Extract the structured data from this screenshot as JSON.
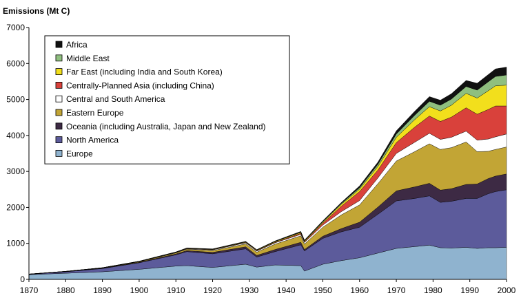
{
  "chart_data": {
    "type": "area",
    "stacked": true,
    "ylabel": "Emissions (Mt C)",
    "xlabel": "",
    "xlim": [
      1870,
      2000
    ],
    "ylim": [
      0,
      7000
    ],
    "xticks": [
      1870,
      1880,
      1890,
      1900,
      1910,
      1920,
      1930,
      1940,
      1950,
      1960,
      1970,
      1980,
      1990,
      2000
    ],
    "yticks": [
      0,
      1000,
      2000,
      3000,
      4000,
      5000,
      6000,
      7000
    ],
    "grid": false,
    "legend_position": "top-left",
    "x": [
      1870,
      1880,
      1890,
      1900,
      1910,
      1913,
      1920,
      1929,
      1932,
      1937,
      1944,
      1945,
      1950,
      1955,
      1960,
      1965,
      1970,
      1975,
      1979,
      1982,
      1985,
      1989,
      1992,
      1995,
      1997,
      2000
    ],
    "series": [
      {
        "name": "Europe",
        "color": "#8fb3cf",
        "values": [
          130,
          170,
          210,
          280,
          370,
          380,
          330,
          420,
          340,
          400,
          380,
          230,
          420,
          520,
          600,
          730,
          860,
          910,
          950,
          880,
          870,
          890,
          860,
          880,
          880,
          890
        ]
      },
      {
        "name": "North America",
        "color": "#5c5b9b",
        "values": [
          10,
          40,
          90,
          180,
          310,
          390,
          380,
          430,
          280,
          370,
          580,
          560,
          720,
          800,
          850,
          1080,
          1320,
          1340,
          1370,
          1260,
          1300,
          1360,
          1390,
          1500,
          1560,
          1600
        ]
      },
      {
        "name": "Oceania (including Australia, Japan and New Zealand)",
        "color": "#3d2a44",
        "values": [
          2,
          4,
          8,
          15,
          25,
          30,
          40,
          55,
          45,
          60,
          70,
          40,
          60,
          90,
          140,
          200,
          280,
          320,
          350,
          340,
          350,
          390,
          400,
          420,
          430,
          440
        ]
      },
      {
        "name": "Eastern Europe",
        "color": "#c2a535",
        "values": [
          2,
          4,
          8,
          15,
          30,
          40,
          50,
          80,
          90,
          150,
          180,
          150,
          250,
          380,
          480,
          650,
          830,
          980,
          1100,
          1130,
          1140,
          1180,
          900,
          760,
          740,
          750
        ]
      },
      {
        "name": "Central and South America",
        "color": "#ffffff",
        "values": [
          1,
          2,
          3,
          5,
          10,
          12,
          18,
          30,
          30,
          35,
          40,
          45,
          60,
          90,
          120,
          160,
          210,
          260,
          290,
          280,
          290,
          300,
          320,
          340,
          350,
          360
        ]
      },
      {
        "name": "Centrally-Planned Asia (including China)",
        "color": "#d9413b",
        "values": [
          1,
          1,
          2,
          3,
          5,
          6,
          8,
          12,
          12,
          15,
          30,
          20,
          50,
          150,
          250,
          220,
          300,
          420,
          480,
          500,
          560,
          650,
          720,
          820,
          860,
          780
        ]
      },
      {
        "name": "Far East (including India and South Korea)",
        "color": "#f2df1c",
        "values": [
          1,
          2,
          3,
          5,
          8,
          10,
          12,
          15,
          15,
          20,
          25,
          20,
          30,
          50,
          70,
          100,
          150,
          210,
          260,
          290,
          330,
          400,
          450,
          520,
          560,
          580
        ]
      },
      {
        "name": "Middle East",
        "color": "#8fbf7f",
        "values": [
          0,
          0,
          0,
          0,
          1,
          1,
          2,
          3,
          3,
          5,
          8,
          8,
          15,
          25,
          40,
          60,
          90,
          120,
          150,
          160,
          170,
          190,
          220,
          250,
          260,
          280
        ]
      },
      {
        "name": "Africa",
        "color": "#111111",
        "values": [
          0,
          0,
          1,
          2,
          4,
          5,
          8,
          12,
          12,
          15,
          20,
          20,
          25,
          30,
          50,
          60,
          90,
          110,
          130,
          140,
          150,
          170,
          190,
          200,
          210,
          220
        ]
      }
    ]
  }
}
